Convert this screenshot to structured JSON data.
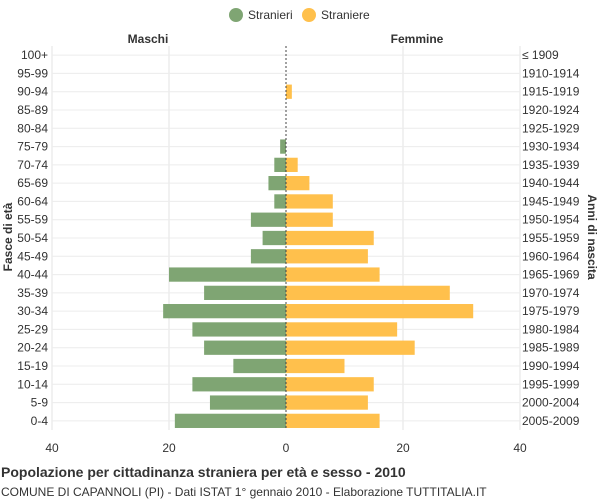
{
  "chart_data": {
    "type": "bar",
    "orientation": "horizontal-pyramid",
    "title": "Popolazione per cittadinanza straniera per età e sesso - 2010",
    "subtitle": "COMUNE DI CAPANNOLI (PI) - Dati ISTAT 1° gennaio 2010 - Elaborazione TUTTITALIA.IT",
    "left_header": "Maschi",
    "right_header": "Femmine",
    "ylabel_left": "Fasce di età",
    "ylabel_right": "Anni di nascita",
    "legend_position": "top-center",
    "xlim": [
      -40,
      40
    ],
    "xticks": [
      {
        "value": -40,
        "label": "40"
      },
      {
        "value": -20,
        "label": "20"
      },
      {
        "value": 0,
        "label": "0"
      },
      {
        "value": 20,
        "label": "20"
      },
      {
        "value": 40,
        "label": "40"
      }
    ],
    "grid": true,
    "categories": [
      "100+",
      "95-99",
      "90-94",
      "85-89",
      "80-84",
      "75-79",
      "70-74",
      "65-69",
      "60-64",
      "55-59",
      "50-54",
      "45-49",
      "40-44",
      "35-39",
      "30-34",
      "25-29",
      "20-24",
      "15-19",
      "10-14",
      "5-9",
      "0-4"
    ],
    "birth_years": [
      "≤ 1909",
      "1910-1914",
      "1915-1919",
      "1920-1924",
      "1925-1929",
      "1930-1934",
      "1935-1939",
      "1940-1944",
      "1945-1949",
      "1950-1954",
      "1955-1959",
      "1960-1964",
      "1965-1969",
      "1970-1974",
      "1975-1979",
      "1980-1984",
      "1985-1989",
      "1990-1994",
      "1995-1999",
      "2000-2004",
      "2005-2009"
    ],
    "series": [
      {
        "name": "Stranieri",
        "side": "left",
        "color": "#7fa573",
        "values": [
          0,
          0,
          0,
          0,
          0,
          1,
          2,
          3,
          2,
          6,
          4,
          6,
          20,
          14,
          21,
          16,
          14,
          9,
          16,
          13,
          19
        ]
      },
      {
        "name": "Straniere",
        "side": "right",
        "color": "#ffc04c",
        "values": [
          0,
          0,
          1,
          0,
          0,
          0,
          2,
          4,
          8,
          8,
          15,
          14,
          16,
          28,
          32,
          19,
          22,
          10,
          15,
          14,
          16
        ]
      }
    ]
  }
}
